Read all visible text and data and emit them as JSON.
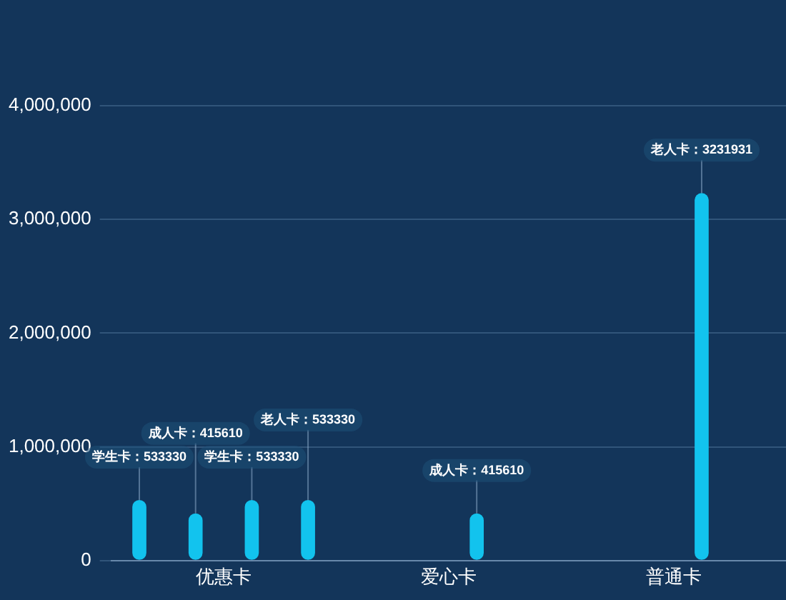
{
  "chart_data": {
    "type": "bar",
    "categories": [
      "优惠卡",
      "爱心卡",
      "普通卡"
    ],
    "series": [
      {
        "color": "#12c3ee",
        "values": [
          533330,
          null,
          null
        ],
        "value_labels": [
          "学生卡：533330",
          null,
          null
        ]
      },
      {
        "color": "#12c3ee",
        "values": [
          415610,
          null,
          null
        ],
        "value_labels": [
          "成人卡：415610",
          null,
          null
        ]
      },
      {
        "color": "#12c3ee",
        "values": [
          533330,
          415610,
          3231931
        ],
        "value_labels": [
          "学生卡：533330",
          "成人卡：415610",
          "老人卡：3231931"
        ]
      },
      {
        "color": "#12c3ee",
        "values": [
          533330,
          null,
          null
        ],
        "value_labels": [
          "老人卡：533330",
          null,
          null
        ]
      }
    ],
    "ylim": [
      0,
      4000000
    ],
    "yticks": [
      0,
      {
        "value": 1000000,
        "label": "1,000,000"
      },
      {
        "value": 2000000,
        "label": "2,000,000"
      },
      {
        "value": 3000000,
        "label": "3,000,000"
      },
      {
        "value": 4000000,
        "label": "4,000,000"
      }
    ],
    "grid": "y",
    "legend": false
  }
}
